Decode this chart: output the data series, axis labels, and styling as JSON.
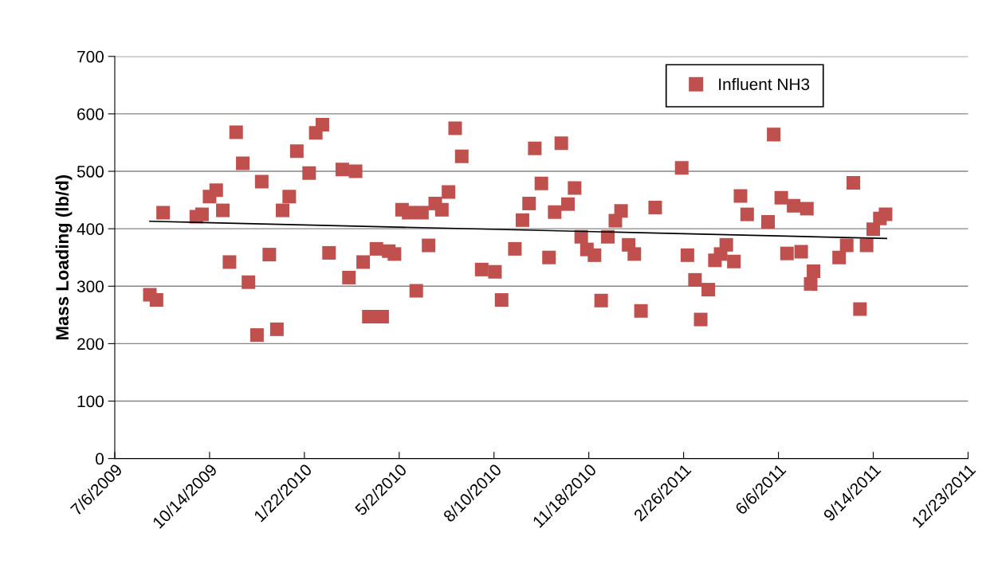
{
  "chart_data": {
    "type": "scatter",
    "ylabel": "Mass Loading (lb/d)",
    "xlim": [
      "2009-07-06",
      "2011-12-23"
    ],
    "xticks": [
      {
        "value": "2009-07-06",
        "label": "7/6/2009"
      },
      {
        "value": "2009-10-14",
        "label": "10/14/2009"
      },
      {
        "value": "2010-01-22",
        "label": "1/22/2010"
      },
      {
        "value": "2010-05-02",
        "label": "5/2/2010"
      },
      {
        "value": "2010-08-10",
        "label": "8/10/2010"
      },
      {
        "value": "2010-11-18",
        "label": "11/18/2010"
      },
      {
        "value": "2011-02-26",
        "label": "2/26/2011"
      },
      {
        "value": "2011-06-06",
        "label": "6/6/2011"
      },
      {
        "value": "2011-09-14",
        "label": "9/14/2011"
      },
      {
        "value": "2011-12-23",
        "label": "12/23/2011"
      }
    ],
    "ylim": [
      0,
      700
    ],
    "yticks": [
      0,
      100,
      200,
      300,
      400,
      500,
      600,
      700
    ],
    "grid": "y",
    "legend": "top right",
    "series": [
      {
        "name": "Influent NH3",
        "marker": "square",
        "color": "#c0504d",
        "x": [
          "2009-08-12",
          "2009-08-19",
          "2009-08-26",
          "2009-09-30",
          "2009-10-06",
          "2009-10-14",
          "2009-10-21",
          "2009-10-28",
          "2009-11-04",
          "2009-11-11",
          "2009-11-18",
          "2009-11-24",
          "2009-12-03",
          "2009-12-08",
          "2009-12-16",
          "2009-12-24",
          "2009-12-30",
          "2010-01-06",
          "2010-01-14",
          "2010-01-27",
          "2010-02-03",
          "2010-02-10",
          "2010-02-17",
          "2010-03-03",
          "2010-03-10",
          "2010-03-17",
          "2010-03-25",
          "2010-03-31",
          "2010-04-08",
          "2010-04-14",
          "2010-04-21",
          "2010-04-27",
          "2010-05-05",
          "2010-05-12",
          "2010-05-20",
          "2010-05-26",
          "2010-06-02",
          "2010-06-09",
          "2010-06-16",
          "2010-06-23",
          "2010-06-30",
          "2010-07-07",
          "2010-07-28",
          "2010-08-11",
          "2010-08-18",
          "2010-09-01",
          "2010-09-09",
          "2010-09-16",
          "2010-09-22",
          "2010-09-29",
          "2010-10-07",
          "2010-10-13",
          "2010-10-20",
          "2010-10-27",
          "2010-11-03",
          "2010-11-10",
          "2010-11-16",
          "2010-11-24",
          "2010-12-01",
          "2010-12-08",
          "2010-12-16",
          "2010-12-22",
          "2010-12-30",
          "2011-01-05",
          "2011-01-12",
          "2011-01-27",
          "2011-02-24",
          "2011-03-02",
          "2011-03-10",
          "2011-03-16",
          "2011-03-24",
          "2011-03-31",
          "2011-04-06",
          "2011-04-12",
          "2011-04-20",
          "2011-04-27",
          "2011-05-04",
          "2011-05-26",
          "2011-06-01",
          "2011-06-09",
          "2011-06-15",
          "2011-06-22",
          "2011-06-30",
          "2011-07-06",
          "2011-07-10",
          "2011-07-13",
          "2011-08-09",
          "2011-08-17",
          "2011-08-24",
          "2011-08-31",
          "2011-09-07",
          "2011-09-14",
          "2011-09-21",
          "2011-09-27"
        ],
        "values": [
          285,
          276,
          428,
          421,
          425,
          456,
          467,
          432,
          342,
          568,
          514,
          307,
          215,
          482,
          355,
          225,
          432,
          456,
          535,
          497,
          567,
          581,
          358,
          503,
          315,
          500,
          342,
          247,
          365,
          247,
          361,
          356,
          433,
          428,
          292,
          428,
          371,
          444,
          433,
          464,
          575,
          526,
          329,
          325,
          276,
          365,
          415,
          444,
          540,
          479,
          350,
          429,
          549,
          443,
          471,
          386,
          364,
          354,
          275,
          386,
          414,
          431,
          372,
          356,
          257,
          437,
          506,
          354,
          311,
          242,
          294,
          345,
          356,
          372,
          343,
          457,
          425,
          412,
          564,
          454,
          357,
          440,
          360,
          435,
          304,
          326,
          350,
          371,
          480,
          260,
          371,
          399,
          418,
          425
        ]
      },
      {
        "type": "line",
        "marker": "none",
        "color": "#000000",
        "x": [
          "2009-08-12",
          "2011-09-28"
        ],
        "values": [
          413,
          383
        ]
      }
    ]
  }
}
